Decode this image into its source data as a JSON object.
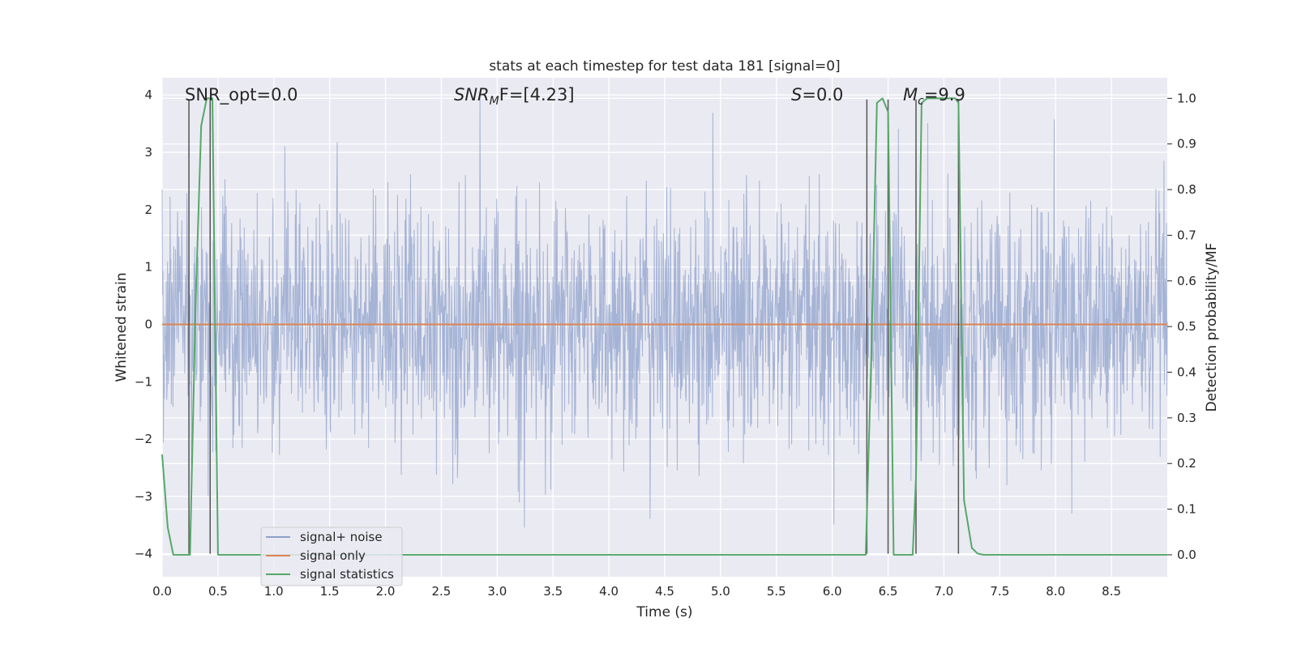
{
  "chart_data": {
    "type": "line",
    "title": "stats at each timestep for test data 181 [signal=0]",
    "xlabel": "Time (s)",
    "ylabel": "Whitened strain",
    "ylabel_right": "Detection probability/MF",
    "xlim": [
      0.0,
      9.0
    ],
    "ylim": [
      -4.4,
      4.3
    ],
    "ylim_right": [
      -0.048,
      1.045
    ],
    "x_ticks": [
      "0.0",
      "0.5",
      "1.0",
      "1.5",
      "2.0",
      "2.5",
      "3.0",
      "3.5",
      "4.0",
      "4.5",
      "5.0",
      "5.5",
      "6.0",
      "6.5",
      "7.0",
      "7.5",
      "8.0",
      "8.5"
    ],
    "y_ticks": [
      "4",
      "3",
      "2",
      "1",
      "0",
      "−1",
      "−2",
      "−3",
      "−4"
    ],
    "y_ticks_right": [
      "1.0",
      "0.9",
      "0.8",
      "0.7",
      "0.6",
      "0.5",
      "0.4",
      "0.3",
      "0.2",
      "0.1",
      "0.0"
    ],
    "annotations": [
      {
        "id": "snr-opt",
        "text": "SNR_opt=0.0"
      },
      {
        "id": "snr-mf",
        "base": "SNR",
        "sub": "M",
        "rest": "F=[4.23]"
      },
      {
        "id": "s-value",
        "base": "S",
        "rest": "=0.0"
      },
      {
        "id": "mc-value",
        "base": "M",
        "sub": "c",
        "rest": "=9.9"
      }
    ],
    "legend": {
      "position": "lower-left",
      "entries": [
        {
          "label": "signal+ noise",
          "color": "#8da0cb"
        },
        {
          "label": "signal only",
          "color": "#dd8452"
        },
        {
          "label": "signal statistics",
          "color": "#55a868"
        }
      ]
    },
    "series": [
      {
        "name": "signal+ noise",
        "color": "#8da0cb",
        "sampling": "dense noise trace, 0.0–9.0 s, amplitude roughly ±2.5 with peaks to ±4"
      },
      {
        "name": "signal only",
        "color": "#dd8452",
        "x": [
          0.0,
          9.0
        ],
        "y": [
          0.0,
          0.0
        ]
      },
      {
        "name": "signal statistics",
        "color": "#55a868",
        "x": [
          0.0,
          0.05,
          0.1,
          0.2,
          0.25,
          0.3,
          0.35,
          0.4,
          0.43,
          0.45,
          0.5,
          1.0,
          3.0,
          6.0,
          6.3,
          6.35,
          6.4,
          6.45,
          6.5,
          6.55,
          6.6,
          6.65,
          6.72,
          6.75,
          6.8,
          6.85,
          7.1,
          7.13,
          7.18,
          7.25,
          7.3,
          7.35,
          7.5,
          9.0
        ],
        "y": [
          0.22,
          0.06,
          0.0,
          0.0,
          0.0,
          0.55,
          0.94,
          1.0,
          1.0,
          1.0,
          0.0,
          0.0,
          0.0,
          0.0,
          0.0,
          0.44,
          0.99,
          1.0,
          0.97,
          0.0,
          0.0,
          0.0,
          0.0,
          0.17,
          0.99,
          1.0,
          1.0,
          0.99,
          0.12,
          0.015,
          0.003,
          0.0,
          0.0,
          0.0
        ]
      }
    ],
    "vertical_lines": [
      0.24,
      0.43,
      6.31,
      6.5,
      6.75,
      7.13
    ],
    "vertical_lines_range": [
      -4.0,
      3.92
    ]
  }
}
